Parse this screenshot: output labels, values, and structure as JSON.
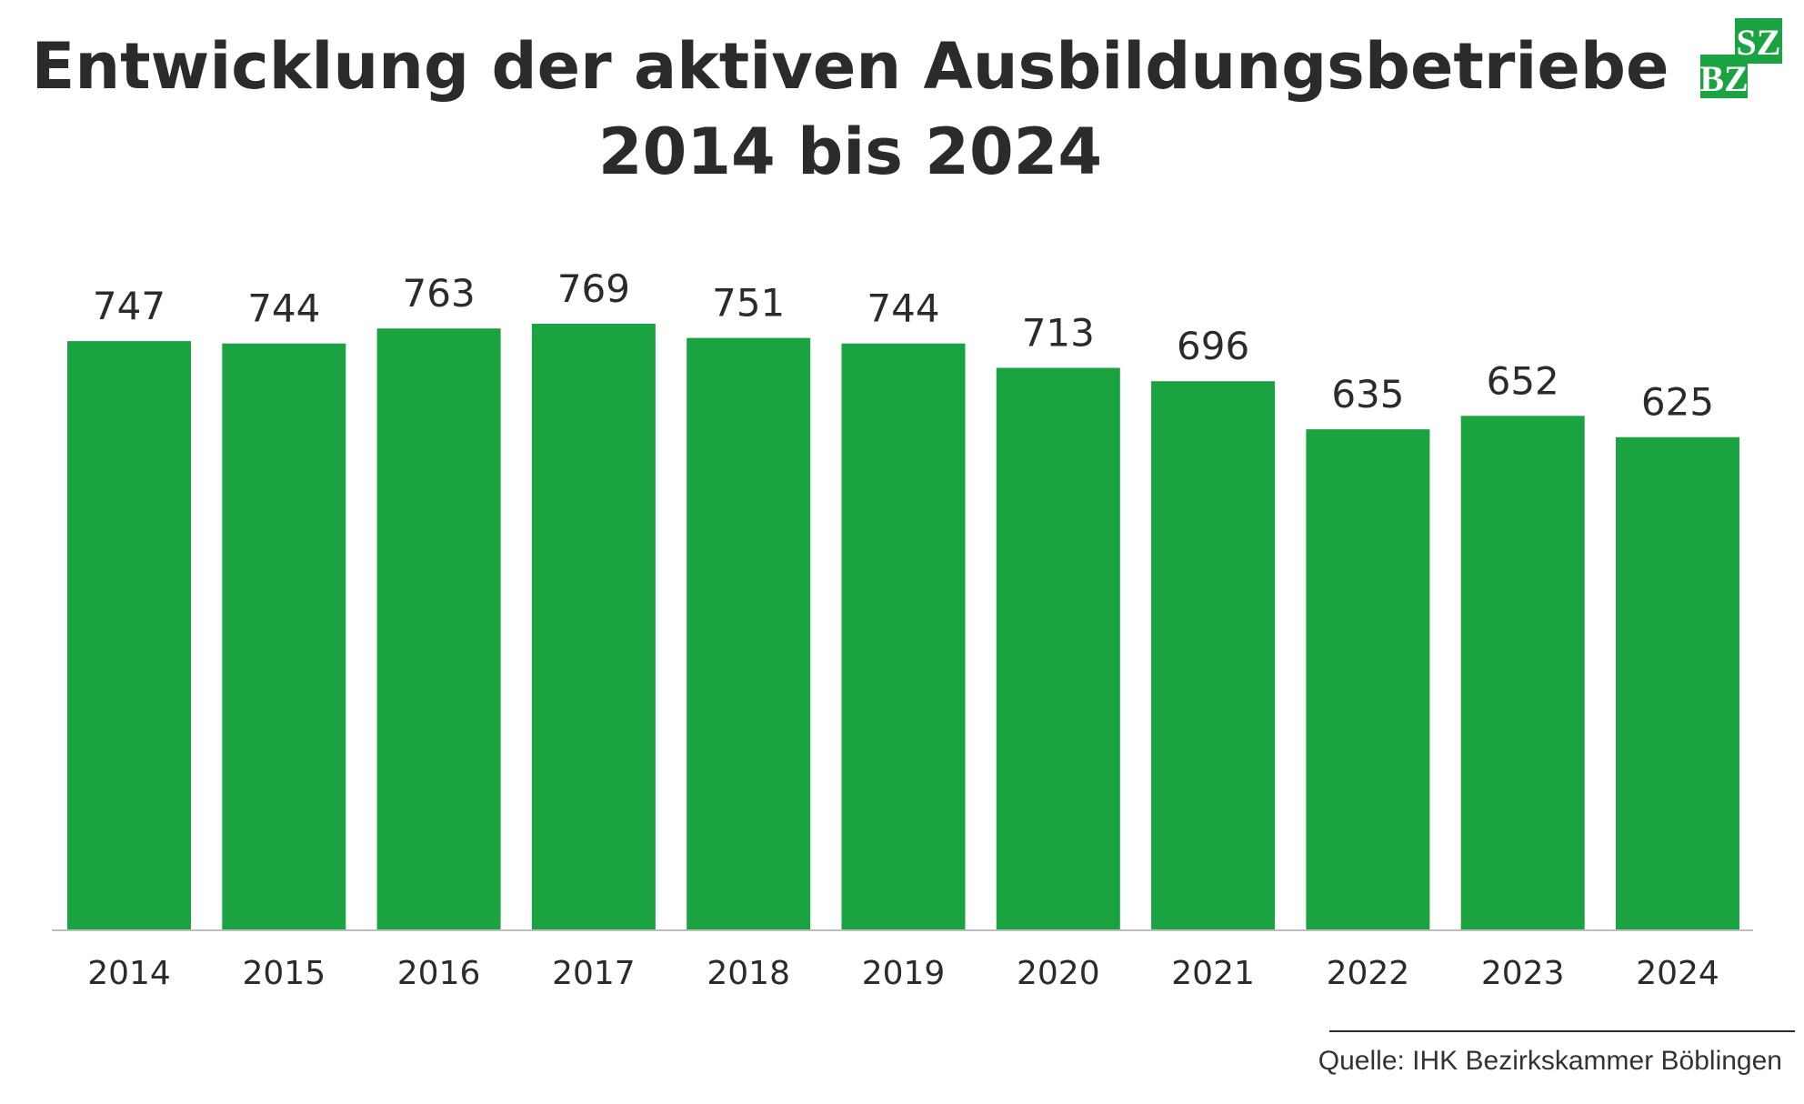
{
  "chart_data": {
    "type": "bar",
    "title_line1": "Entwicklung der aktiven Ausbildungsbetriebe",
    "title_line2": "2014 bis 2024",
    "categories": [
      "2014",
      "2015",
      "2016",
      "2017",
      "2018",
      "2019",
      "2020",
      "2021",
      "2022",
      "2023",
      "2024"
    ],
    "values": [
      747,
      744,
      763,
      769,
      751,
      744,
      713,
      696,
      635,
      652,
      625
    ],
    "xlabel": "",
    "ylabel": "",
    "ylim": [
      0,
      769
    ],
    "grid": false,
    "legend": "none",
    "bar_color": "#1ba342"
  },
  "source": "Quelle: IHK Bezirkskammer Böblingen",
  "logo": {
    "text_top": "SZ",
    "text_bottom": "BZ",
    "color": "#1ba342"
  }
}
